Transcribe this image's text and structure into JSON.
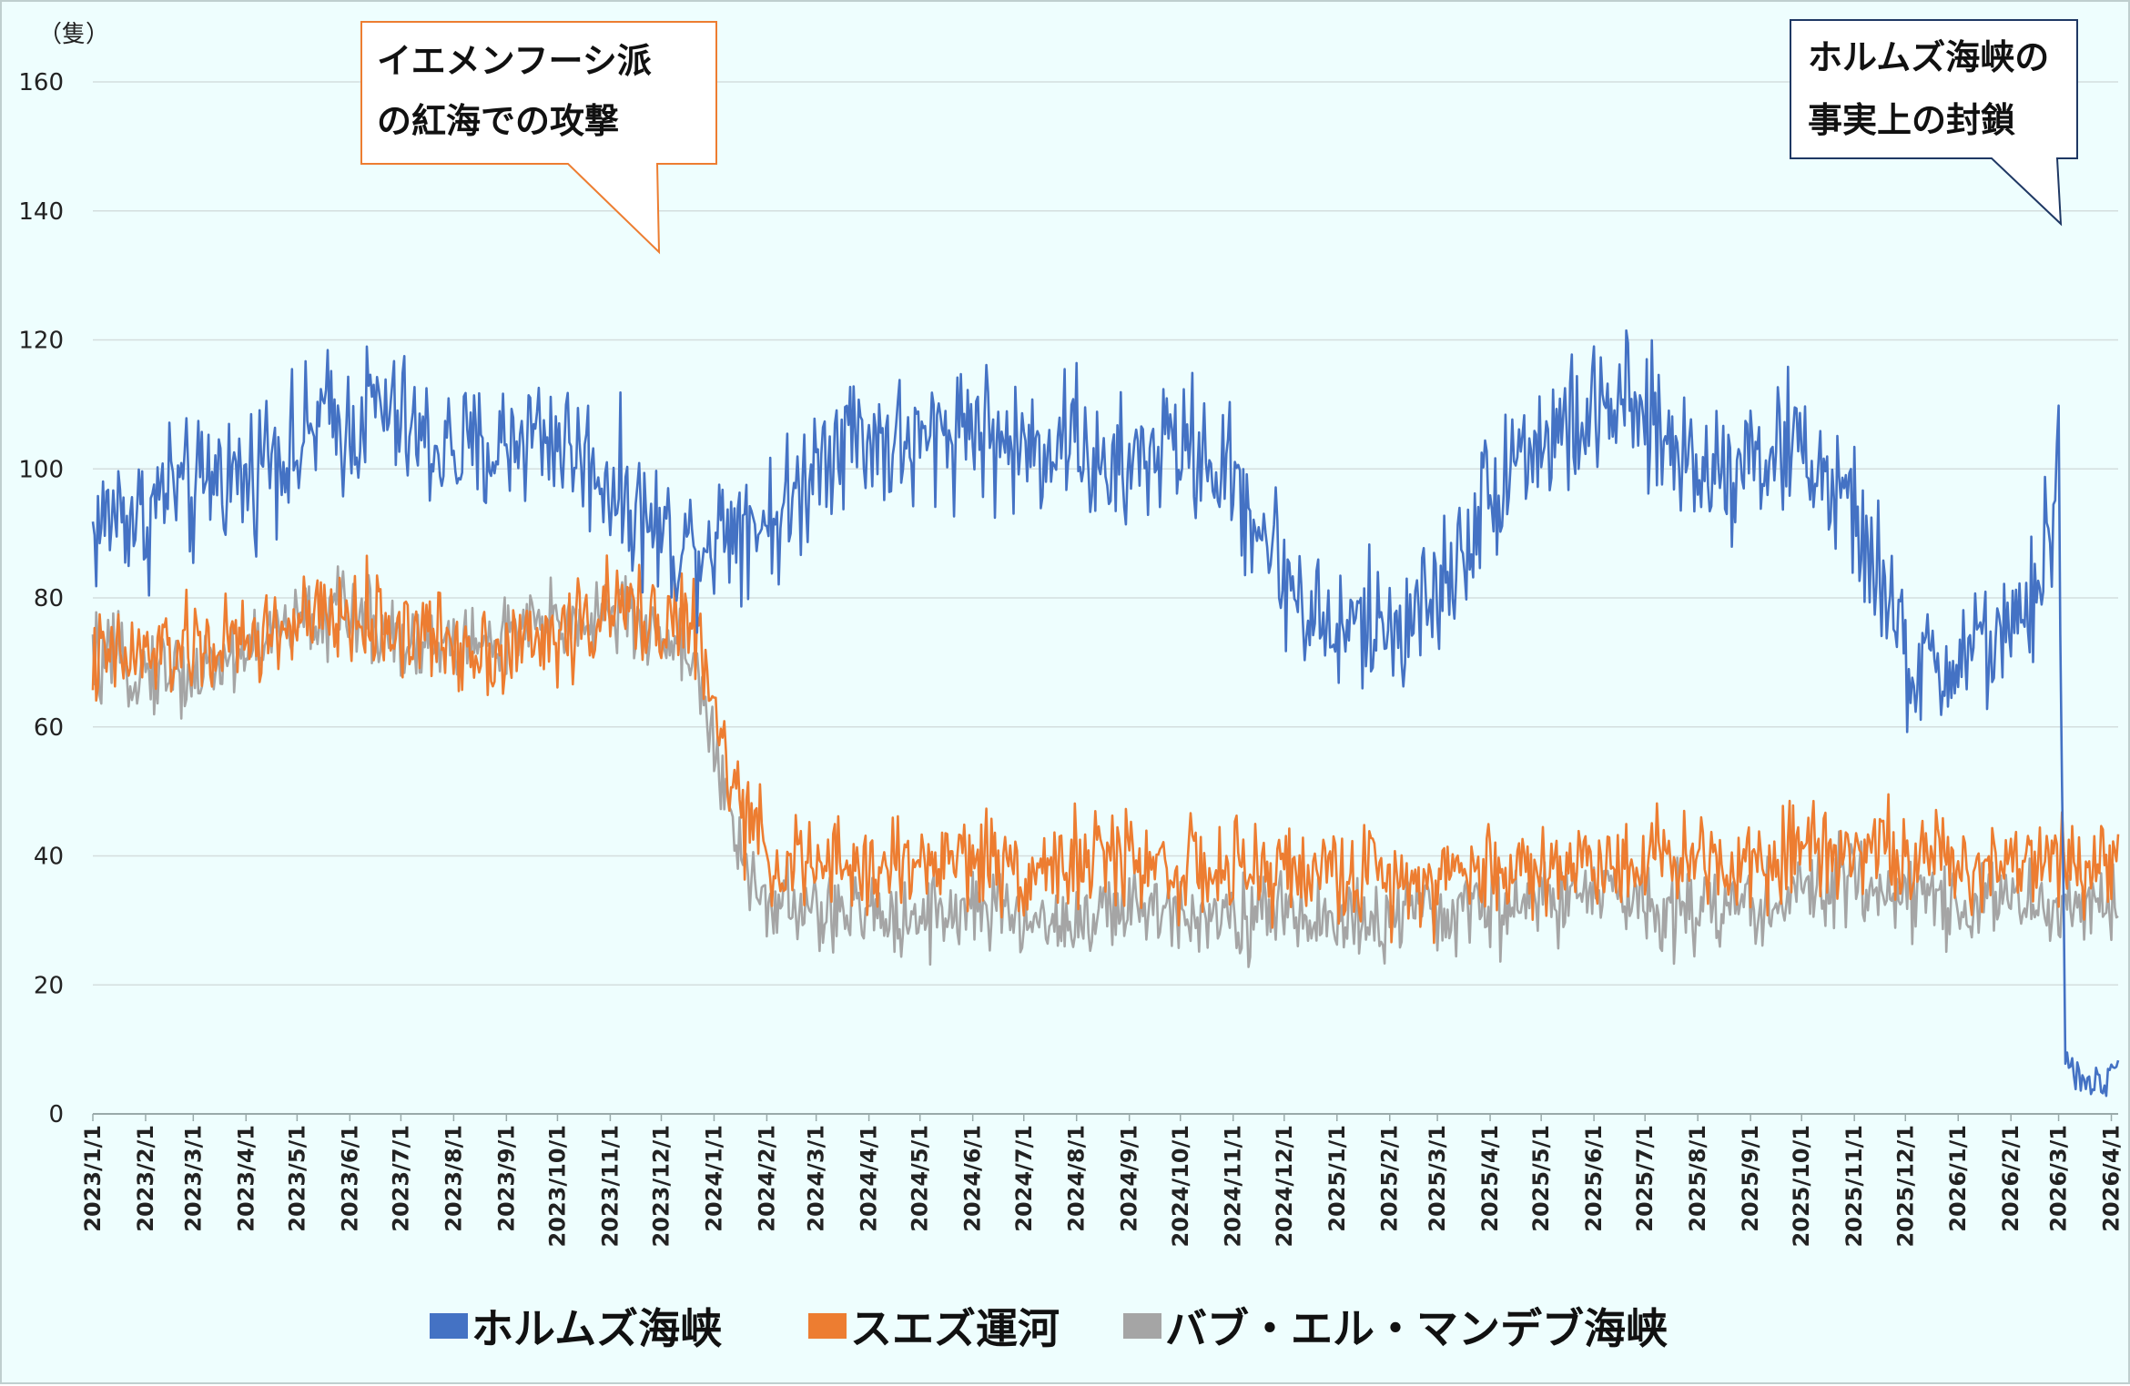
{
  "chart_data": {
    "type": "line",
    "y_unit": "（隻）",
    "ylim": [
      0,
      160
    ],
    "yticks": [
      0,
      20,
      40,
      60,
      80,
      100,
      120,
      140,
      160
    ],
    "grid": true,
    "legend_position": "bottom",
    "x_range": [
      "2023-01-01",
      "2026-04-05"
    ],
    "xticks": [
      "2023/1/1",
      "2023/2/1",
      "2023/3/1",
      "2023/4/1",
      "2023/5/1",
      "2023/6/1",
      "2023/7/1",
      "2023/8/1",
      "2023/9/1",
      "2023/10/1",
      "2023/11/1",
      "2023/12/1",
      "2024/1/1",
      "2024/2/1",
      "2024/3/1",
      "2024/4/1",
      "2024/5/1",
      "2024/6/1",
      "2024/7/1",
      "2024/8/1",
      "2024/9/1",
      "2024/10/1",
      "2024/11/1",
      "2024/12/1",
      "2025/1/1",
      "2025/2/1",
      "2025/3/1",
      "2025/4/1",
      "2025/5/1",
      "2025/6/1",
      "2025/7/1",
      "2025/8/1",
      "2025/9/1",
      "2025/10/1",
      "2025/11/1",
      "2025/12/1",
      "2026/1/1",
      "2026/2/1",
      "2026/3/1",
      "2026/4/1"
    ],
    "series": [
      {
        "name": "ホルムズ海峡",
        "color": "#4472c4",
        "x": [
          "2023-01-01",
          "2023-01-15",
          "2023-02-01",
          "2023-02-15",
          "2023-03-01",
          "2023-03-15",
          "2023-04-01",
          "2023-04-15",
          "2023-05-01",
          "2023-05-15",
          "2023-06-01",
          "2023-06-15",
          "2023-07-01",
          "2023-07-15",
          "2023-08-01",
          "2023-08-15",
          "2023-09-01",
          "2023-09-15",
          "2023-10-01",
          "2023-10-15",
          "2023-11-01",
          "2023-11-15",
          "2023-12-01",
          "2023-12-15",
          "2024-01-01",
          "2024-01-15",
          "2024-02-01",
          "2024-02-15",
          "2024-03-01",
          "2024-03-15",
          "2024-04-01",
          "2024-04-15",
          "2024-05-01",
          "2024-05-15",
          "2024-06-01",
          "2024-06-15",
          "2024-07-01",
          "2024-07-15",
          "2024-08-01",
          "2024-08-15",
          "2024-09-01",
          "2024-09-15",
          "2024-10-01",
          "2024-10-15",
          "2024-11-01",
          "2024-11-15",
          "2024-12-01",
          "2024-12-15",
          "2025-01-01",
          "2025-01-15",
          "2025-02-01",
          "2025-02-15",
          "2025-03-01",
          "2025-03-15",
          "2025-04-01",
          "2025-04-15",
          "2025-05-01",
          "2025-05-15",
          "2025-06-01",
          "2025-06-15",
          "2025-07-01",
          "2025-07-15",
          "2025-08-01",
          "2025-08-15",
          "2025-09-01",
          "2025-09-15",
          "2025-10-01",
          "2025-10-15",
          "2025-11-01",
          "2025-11-15",
          "2025-12-01",
          "2025-12-15",
          "2026-01-01",
          "2026-01-15",
          "2026-02-01",
          "2026-02-15",
          "2026-02-25",
          "2026-03-01",
          "2026-03-05",
          "2026-03-15",
          "2026-04-01",
          "2026-04-05"
        ],
        "values": [
          90,
          94,
          92,
          98,
          95,
          100,
          98,
          104,
          102,
          108,
          106,
          110,
          107,
          104,
          103,
          102,
          104,
          106,
          105,
          102,
          98,
          94,
          90,
          88,
          90,
          93,
          92,
          94,
          102,
          106,
          105,
          104,
          103,
          106,
          108,
          104,
          103,
          104,
          106,
          98,
          100,
          103,
          104,
          102,
          98,
          92,
          84,
          78,
          74,
          76,
          75,
          78,
          80,
          88,
          96,
          103,
          104,
          106,
          108,
          110,
          107,
          104,
          101,
          100,
          103,
          102,
          104,
          98,
          92,
          84,
          70,
          68,
          70,
          74,
          72,
          80,
          92,
          104,
          8,
          5,
          5,
          8
        ],
        "noise": 10
      },
      {
        "name": "スエズ運河",
        "color": "#ed7d31",
        "x": [
          "2023-01-01",
          "2023-02-01",
          "2023-03-01",
          "2023-04-01",
          "2023-05-01",
          "2023-06-01",
          "2023-07-01",
          "2023-08-01",
          "2023-09-01",
          "2023-10-01",
          "2023-11-01",
          "2023-12-01",
          "2023-12-20",
          "2024-01-01",
          "2024-01-15",
          "2024-02-01",
          "2024-03-01",
          "2024-04-01",
          "2024-05-01",
          "2024-06-01",
          "2024-07-01",
          "2024-08-01",
          "2024-09-01",
          "2024-10-01",
          "2024-11-01",
          "2024-12-01",
          "2025-01-01",
          "2025-02-01",
          "2025-03-01",
          "2025-04-01",
          "2025-05-01",
          "2025-06-01",
          "2025-07-01",
          "2025-08-01",
          "2025-09-01",
          "2025-10-01",
          "2025-11-01",
          "2025-12-01",
          "2026-01-01",
          "2026-02-01",
          "2026-03-01",
          "2026-04-05"
        ],
        "values": [
          70,
          71,
          72,
          73,
          76,
          77,
          75,
          73,
          72,
          74,
          78,
          77,
          76,
          62,
          48,
          40,
          38,
          38,
          39,
          40,
          38,
          39,
          40,
          38,
          37,
          38,
          37,
          37,
          37,
          38,
          38,
          39,
          40,
          40,
          39,
          42,
          42,
          40,
          38,
          40,
          40,
          40
        ],
        "noise": 7
      },
      {
        "name": "バブ・エル・マンデブ海峡",
        "color": "#a5a5a5",
        "x": [
          "2023-01-01",
          "2023-02-01",
          "2023-03-01",
          "2023-04-01",
          "2023-05-01",
          "2023-06-01",
          "2023-07-01",
          "2023-08-01",
          "2023-09-01",
          "2023-10-01",
          "2023-11-01",
          "2023-12-01",
          "2023-12-20",
          "2024-01-01",
          "2024-01-15",
          "2024-02-01",
          "2024-03-01",
          "2024-04-01",
          "2024-05-01",
          "2024-06-01",
          "2024-07-01",
          "2024-08-01",
          "2024-09-01",
          "2024-10-01",
          "2024-11-01",
          "2024-12-01",
          "2025-01-01",
          "2025-02-01",
          "2025-03-01",
          "2025-04-01",
          "2025-05-01",
          "2025-06-01",
          "2025-07-01",
          "2025-08-01",
          "2025-09-01",
          "2025-10-01",
          "2025-11-01",
          "2025-12-01",
          "2026-01-01",
          "2026-02-01",
          "2026-03-01",
          "2026-04-05"
        ],
        "values": [
          70,
          69,
          68,
          72,
          76,
          78,
          74,
          72,
          74,
          76,
          78,
          74,
          72,
          56,
          40,
          33,
          31,
          31,
          31,
          32,
          30,
          30,
          31,
          32,
          31,
          31,
          30,
          30,
          31,
          32,
          33,
          34,
          33,
          32,
          32,
          34,
          36,
          34,
          33,
          33,
          32,
          32
        ],
        "noise": 6
      }
    ]
  },
  "annotations": {
    "houthi": {
      "line1": "イエメンフーシ派",
      "line2": "の紅海での攻撃",
      "border_color": "#ed7d31"
    },
    "hormuz": {
      "line1": "ホルムズ海峡の",
      "line2": "事実上の封鎖",
      "border_color": "#1f3864"
    }
  },
  "legend": {
    "items": [
      {
        "label": "ホルムズ海峡",
        "color": "#4472c4"
      },
      {
        "label": "スエズ運河",
        "color": "#ed7d31"
      },
      {
        "label": "バブ・エル・マンデブ海峡",
        "color": "#a5a5a5"
      }
    ]
  }
}
